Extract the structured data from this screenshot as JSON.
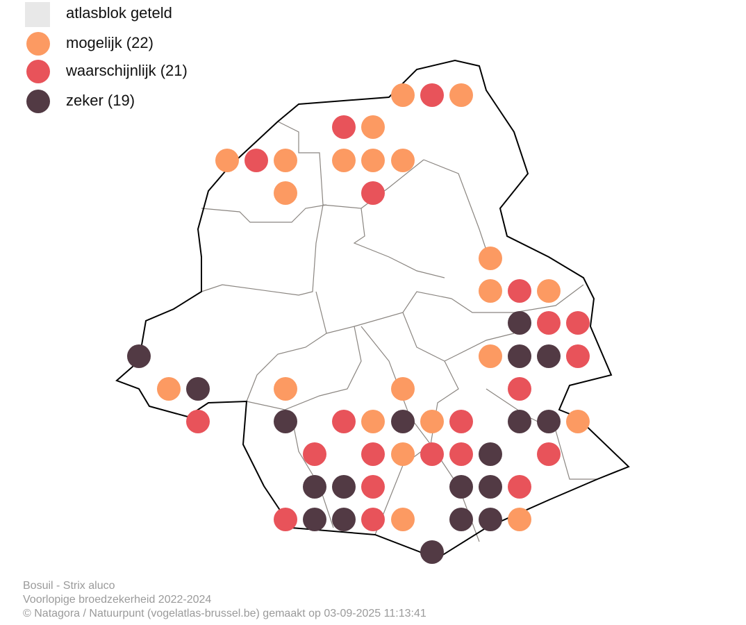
{
  "legend": {
    "items": [
      "atlasblok geteld",
      "mogelijk (22)",
      "waarschijnlijk (21)",
      "zeker (19)"
    ]
  },
  "footer": {
    "lines": [
      "Bosuil - Strix aluco",
      "Voorlopige broedzekerheid 2022-2024",
      "© Natagora / Natuurpunt (vogelatlas-brussel.be) gemaakt op 03-09-2025 11:13:41"
    ]
  }
}
